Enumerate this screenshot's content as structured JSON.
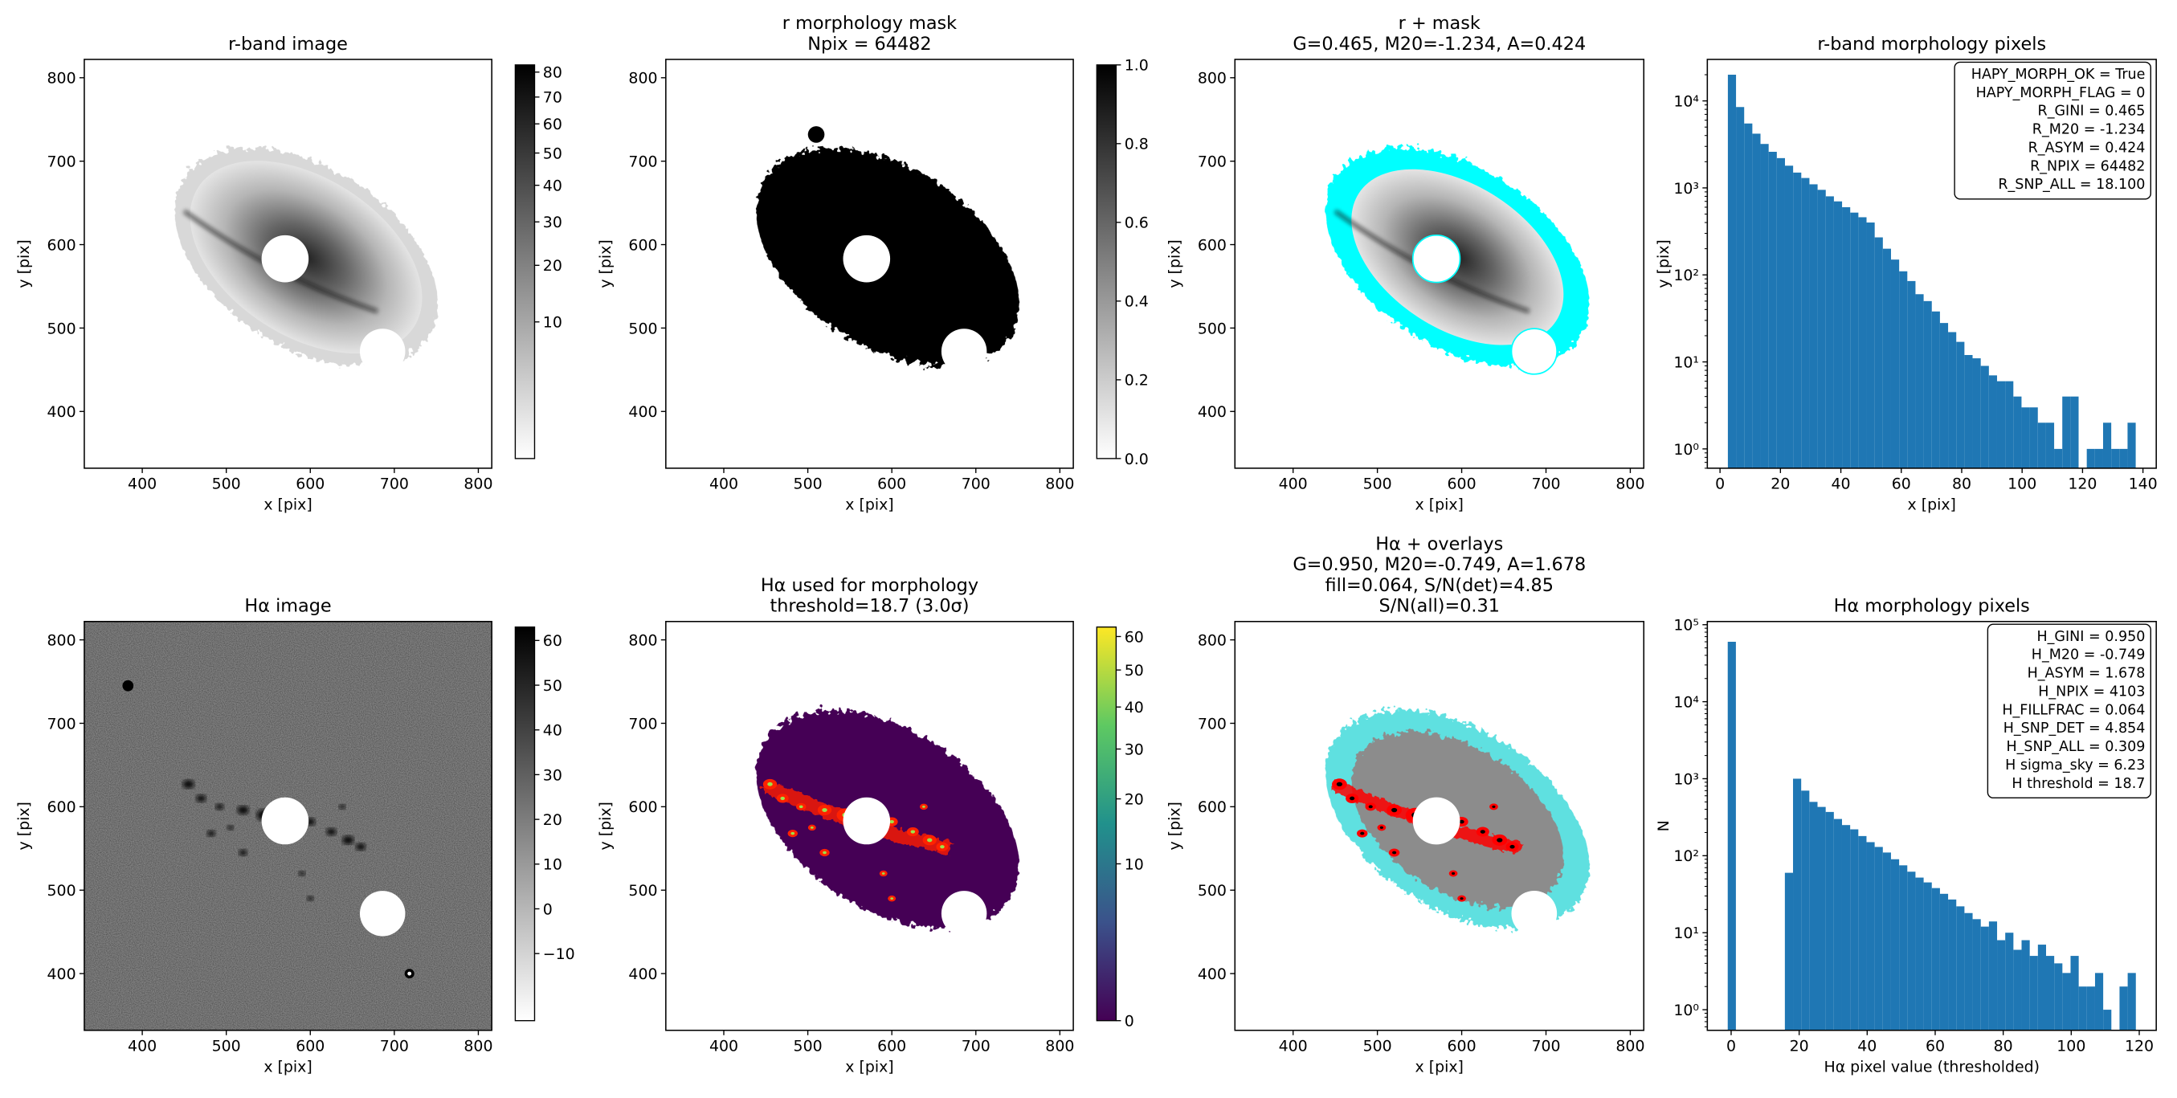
{
  "chart_data": [
    {
      "type": "image",
      "title": [
        "r-band image"
      ],
      "xlabel": "x [pix]",
      "ylabel": "y [pix]",
      "xlim": [
        331,
        816
      ],
      "ylim": [
        332,
        822
      ],
      "xticks": [
        400,
        500,
        600,
        700,
        800
      ],
      "yticks": [
        400,
        500,
        600,
        700,
        800
      ],
      "cmap": "gray_r",
      "colorbar": {
        "lim": [
          0,
          83
        ],
        "scale": "sqrt",
        "ticks": [
          10,
          20,
          30,
          40,
          50,
          60,
          70,
          80
        ]
      }
    },
    {
      "type": "image",
      "title": [
        "r morphology mask",
        "Npix = 64482"
      ],
      "xlabel": "x [pix]",
      "ylabel": "y [pix]",
      "xlim": [
        331,
        816
      ],
      "ylim": [
        332,
        822
      ],
      "xticks": [
        400,
        500,
        600,
        700,
        800
      ],
      "yticks": [
        400,
        500,
        600,
        700,
        800
      ],
      "cmap": "mask",
      "colorbar": {
        "lim": [
          0,
          1
        ],
        "scale": "linear",
        "ticks": [
          {
            "value": 0,
            "label": "0.0"
          },
          0.2,
          0.4,
          0.6,
          0.8,
          {
            "value": 1,
            "label": "1.0"
          }
        ]
      }
    },
    {
      "type": "image",
      "title": [
        "r + mask",
        "G=0.465, M20=-1.234, A=0.424"
      ],
      "xlabel": "x [pix]",
      "ylabel": "y [pix]",
      "xlim": [
        331,
        816
      ],
      "ylim": [
        332,
        822
      ],
      "xticks": [
        400,
        500,
        600,
        700,
        800
      ],
      "yticks": [
        400,
        500,
        600,
        700,
        800
      ],
      "cmap": "gray_r_overlay_cyan"
    },
    {
      "type": "histogram",
      "title": [
        "r-band morphology pixels"
      ],
      "xlabel": "x [pix]",
      "ylabel": "y [pix]",
      "log_y": true,
      "color": "#1f77b4",
      "xlim": [
        -4.2,
        144.4
      ],
      "ylim": [
        0.6,
        30000
      ],
      "xticks": [
        0,
        20,
        40,
        60,
        80,
        100,
        120,
        140
      ],
      "yticks": [
        {
          "value": 1,
          "label": "10⁰"
        },
        {
          "value": 10,
          "label": "10¹"
        },
        {
          "value": 100,
          "label": "10²"
        },
        {
          "value": 1000,
          "label": "10³"
        },
        {
          "value": 10000,
          "label": "10⁴"
        }
      ],
      "bins": [
        2.6,
        5.3,
        8.0,
        10.7,
        13.4,
        16.1,
        18.8,
        21.5,
        24.2,
        26.9,
        29.6,
        32.3,
        35.0,
        37.7,
        40.4,
        43.1,
        45.8,
        48.5,
        51.2,
        53.9,
        56.6,
        59.3,
        62.0,
        64.7,
        67.4,
        70.1,
        72.8,
        75.5,
        78.2,
        80.9,
        83.6,
        86.3,
        89.0,
        91.7,
        94.4,
        97.1,
        99.8,
        102.5,
        105.2,
        107.9,
        110.6,
        113.3,
        116.0,
        118.7,
        121.4,
        124.1,
        126.8,
        129.5,
        132.2,
        134.9,
        137.6
      ],
      "values": [
        20000,
        8500,
        5500,
        4200,
        3200,
        2600,
        2200,
        1800,
        1500,
        1300,
        1100,
        950,
        800,
        700,
        600,
        520,
        460,
        400,
        270,
        200,
        150,
        110,
        85,
        60,
        50,
        38,
        28,
        22,
        17,
        12,
        11,
        9,
        7,
        6,
        6,
        4,
        3,
        3,
        2,
        2,
        1,
        4,
        4,
        0,
        1,
        1,
        2,
        1,
        1,
        2
      ],
      "annotation": [
        "HAPY_MORPH_OK = True",
        "HAPY_MORPH_FLAG = 0",
        "R_GINI = 0.465",
        "R_M20 = -1.234",
        "R_ASYM = 0.424",
        "R_NPIX = 64482",
        "R_SNP_ALL = 18.100"
      ]
    },
    {
      "type": "image",
      "title": [
        "Hα image"
      ],
      "xlabel": "x [pix]",
      "ylabel": "y [pix]",
      "xlim": [
        331,
        816
      ],
      "ylim": [
        332,
        822
      ],
      "xticks": [
        400,
        500,
        600,
        700,
        800
      ],
      "yticks": [
        400,
        500,
        600,
        700,
        800
      ],
      "cmap": "gray_r_noise",
      "colorbar": {
        "lim": [
          -25,
          63
        ],
        "scale": "linear",
        "ticks": [
          {
            "value": -10,
            "label": "−10"
          },
          0,
          10,
          20,
          30,
          40,
          50,
          60
        ]
      }
    },
    {
      "type": "image",
      "title": [
        "Hα used for morphology",
        "threshold=18.7 (3.0σ)"
      ],
      "xlabel": "x [pix]",
      "ylabel": "y [pix]",
      "xlim": [
        331,
        816
      ],
      "ylim": [
        332,
        822
      ],
      "xticks": [
        400,
        500,
        600,
        700,
        800
      ],
      "yticks": [
        400,
        500,
        600,
        700,
        800
      ],
      "cmap": "viridis",
      "colorbar": {
        "lim": [
          0,
          63
        ],
        "scale": "sqrt",
        "ticks": [
          0,
          10,
          20,
          30,
          40,
          50,
          60
        ]
      }
    },
    {
      "type": "image",
      "title": [
        "Hα + overlays",
        "G=0.950, M20=-0.749, A=1.678",
        "fill=0.064, S/N(det)=4.85",
        "S/N(all)=0.31"
      ],
      "xlabel": "x [pix]",
      "ylabel": "y [pix]",
      "xlim": [
        331,
        816
      ],
      "ylim": [
        332,
        822
      ],
      "xticks": [
        400,
        500,
        600,
        700,
        800
      ],
      "yticks": [
        400,
        500,
        600,
        700,
        800
      ],
      "cmap": "gray_overlay_red_cyan"
    },
    {
      "type": "histogram",
      "title": [
        "Hα morphology pixels"
      ],
      "xlabel": "Hα pixel value (thresholded)",
      "ylabel": "N",
      "log_y": true,
      "color": "#1f77b4",
      "xlim": [
        -7,
        125
      ],
      "ylim": [
        0.54,
        110000
      ],
      "xticks": [
        0,
        20,
        40,
        60,
        80,
        100,
        120
      ],
      "yticks": [
        {
          "value": 1,
          "label": "10⁰"
        },
        {
          "value": 10,
          "label": "10¹"
        },
        {
          "value": 100,
          "label": "10²"
        },
        {
          "value": 1000,
          "label": "10³"
        },
        {
          "value": 10000,
          "label": "10⁴"
        },
        {
          "value": 100000,
          "label": "10⁵"
        }
      ],
      "bins": [
        -1.0,
        1.4,
        3.8,
        6.2,
        8.6,
        11.0,
        13.4,
        15.8,
        18.2,
        20.6,
        23.0,
        25.4,
        27.8,
        30.2,
        32.6,
        35.0,
        37.4,
        39.8,
        42.2,
        44.6,
        47.0,
        49.4,
        51.8,
        54.2,
        56.6,
        59.0,
        61.4,
        63.8,
        66.2,
        68.6,
        71.0,
        73.4,
        75.8,
        78.2,
        80.6,
        83.0,
        85.4,
        87.8,
        90.2,
        92.6,
        95.0,
        97.4,
        99.8,
        102.2,
        104.6,
        107.0,
        109.4,
        111.8,
        114.2,
        116.6,
        119.0
      ],
      "values": [
        60000,
        0,
        0,
        0,
        0,
        0,
        0,
        60,
        1000,
        700,
        500,
        430,
        370,
        300,
        250,
        220,
        180,
        150,
        130,
        110,
        90,
        75,
        62,
        52,
        45,
        38,
        32,
        27,
        22,
        18,
        15,
        12,
        14,
        8,
        10,
        6,
        8,
        5,
        7,
        5,
        4,
        3,
        5,
        2,
        2,
        3,
        1,
        0,
        2,
        3
      ],
      "annotation": [
        "H_GINI = 0.950",
        "H_M20 = -0.749",
        "H_ASYM = 1.678",
        "H_NPIX = 4103",
        "H_FILLFRAC = 0.064",
        "H_SNP_DET = 4.854",
        "H_SNP_ALL = 0.309",
        "H sigma_sky = 6.23",
        "H threshold = 18.7"
      ]
    }
  ]
}
